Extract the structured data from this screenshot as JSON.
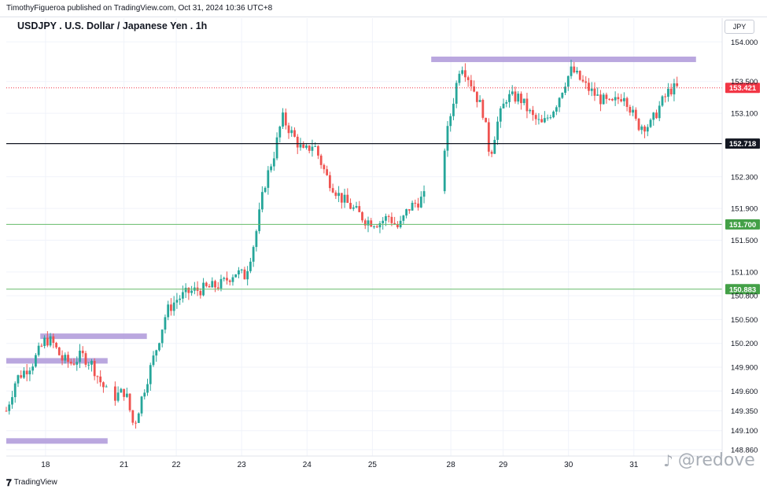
{
  "header": {
    "published_text": "TimothyFigueroa published on TradingView.com, Oct 31, 2024 10:36 UTC+8"
  },
  "currency": "JPY",
  "footer": {
    "logo_glyph": "𝟕",
    "brand": "TradingView"
  },
  "watermark": {
    "icon": "tiktok-icon",
    "icon_glyph": "♪",
    "handle": "@redove"
  },
  "colors": {
    "up": "#26a69a",
    "down": "#ef5350",
    "zone": "#b39ddb",
    "green_line": "#66bb6a",
    "green_label": "#43a047",
    "black_line": "#131722",
    "current_price": "#f23645",
    "grid": "#f0f3fa"
  },
  "chart_data": {
    "type": "candlestick",
    "title": "USDJPY . U.S. Dollar / Japanese Yen . 1h",
    "y_axis_labels": [
      154.0,
      153.5,
      153.1,
      152.3,
      151.9,
      151.5,
      151.1,
      150.8,
      150.5,
      150.2,
      149.9,
      149.6,
      149.35,
      149.1,
      148.86
    ],
    "ylim": [
      148.78,
      154.3
    ],
    "x_axis_labels": [
      {
        "label": "18",
        "day": 1.5
      },
      {
        "label": "21",
        "day": 2.7
      },
      {
        "label": "22",
        "day": 3.5
      },
      {
        "label": "23",
        "day": 4.5
      },
      {
        "label": "24",
        "day": 5.5
      },
      {
        "label": "25",
        "day": 6.5
      },
      {
        "label": "28",
        "day": 7.7
      },
      {
        "label": "29",
        "day": 8.5
      },
      {
        "label": "30",
        "day": 9.5
      },
      {
        "label": "31",
        "day": 10.5
      }
    ],
    "xlim": [
      0.9,
      11.85
    ],
    "horizontal_lines": [
      {
        "name": "current-price",
        "value": 153.421,
        "label": "153.421",
        "style": "dotted-red"
      },
      {
        "name": "black-level",
        "value": 152.718,
        "label": "152.718",
        "style": "solid-black"
      },
      {
        "name": "green-level-1",
        "value": 151.7,
        "label": "151.700",
        "style": "solid-green"
      },
      {
        "name": "green-level-2",
        "value": 150.883,
        "label": "150.883",
        "style": "solid-green"
      }
    ],
    "zones": [
      {
        "name": "resistance-zone-top",
        "start_day": 7.4,
        "end_day": 11.45,
        "value": 153.78
      },
      {
        "name": "resistance-zone-mid",
        "start_day": 1.42,
        "end_day": 3.05,
        "value": 150.29
      },
      {
        "name": "zone-left-mid",
        "start_day": 0.9,
        "end_day": 2.45,
        "value": 149.98
      },
      {
        "name": "zone-left-bottom",
        "start_day": 0.9,
        "end_day": 2.45,
        "value": 148.97
      }
    ],
    "price_path": [
      [
        0.9,
        149.35
      ],
      [
        1.05,
        149.75
      ],
      [
        1.3,
        149.95
      ],
      [
        1.5,
        150.25
      ],
      [
        1.6,
        150.22
      ],
      [
        1.75,
        150.0
      ],
      [
        1.9,
        149.95
      ],
      [
        2.05,
        150.05
      ],
      [
        2.2,
        149.95
      ],
      [
        2.35,
        149.7
      ],
      [
        2.5,
        149.5
      ],
      [
        2.6,
        149.55
      ],
      [
        2.72,
        149.6
      ],
      [
        2.85,
        149.15
      ],
      [
        3.0,
        149.6
      ],
      [
        3.2,
        150.15
      ],
      [
        3.35,
        150.6
      ],
      [
        3.5,
        150.75
      ],
      [
        3.7,
        150.85
      ],
      [
        4.0,
        150.9
      ],
      [
        4.2,
        150.95
      ],
      [
        4.4,
        151.1
      ],
      [
        4.55,
        151.05
      ],
      [
        4.7,
        151.5
      ],
      [
        4.85,
        152.2
      ],
      [
        5.0,
        152.6
      ],
      [
        5.12,
        153.05
      ],
      [
        5.3,
        152.8
      ],
      [
        5.45,
        152.6
      ],
      [
        5.6,
        152.72
      ],
      [
        5.8,
        152.3
      ],
      [
        6.0,
        152.05
      ],
      [
        6.2,
        151.9
      ],
      [
        6.4,
        151.75
      ],
      [
        6.6,
        151.72
      ],
      [
        6.75,
        151.8
      ],
      [
        6.9,
        151.65
      ],
      [
        7.05,
        151.9
      ],
      [
        7.3,
        152.05
      ],
      [
        7.5,
        152.2
      ],
      [
        7.7,
        153.1
      ],
      [
        7.85,
        153.75
      ],
      [
        8.0,
        153.5
      ],
      [
        8.2,
        153.1
      ],
      [
        8.3,
        152.55
      ],
      [
        8.4,
        152.95
      ],
      [
        8.55,
        153.3
      ],
      [
        8.75,
        153.3
      ],
      [
        8.95,
        153.05
      ],
      [
        9.1,
        152.95
      ],
      [
        9.3,
        153.2
      ],
      [
        9.45,
        153.5
      ],
      [
        9.55,
        153.65
      ],
      [
        9.75,
        153.45
      ],
      [
        9.95,
        153.3
      ],
      [
        10.15,
        153.2
      ],
      [
        10.35,
        153.35
      ],
      [
        10.55,
        152.95
      ],
      [
        10.75,
        152.95
      ],
      [
        10.9,
        153.2
      ],
      [
        11.05,
        153.4
      ],
      [
        11.2,
        153.42
      ]
    ]
  }
}
